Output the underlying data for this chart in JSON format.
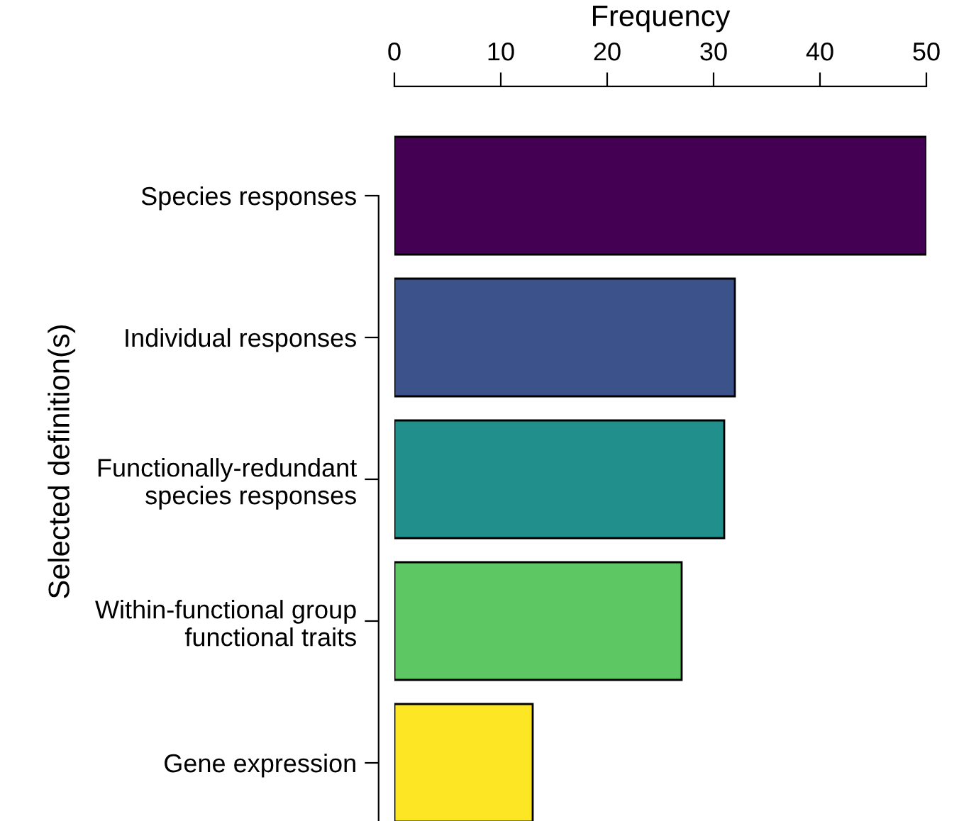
{
  "chart_data": {
    "type": "bar",
    "orientation": "horizontal",
    "xlabel": "Frequency",
    "ylabel": "Selected definition(s)",
    "categories": [
      "Species responses",
      "Individual responses",
      "Functionally-redundant\nspecies responses",
      "Within-functional group\nfunctional traits",
      "Gene expression"
    ],
    "values": [
      50,
      32,
      31,
      27,
      13
    ],
    "colors": [
      "#440154",
      "#3b528b",
      "#21908d",
      "#5dc863",
      "#fde725"
    ],
    "xlim": [
      0,
      50
    ],
    "xticks": [
      0,
      10,
      20,
      30,
      40,
      50
    ],
    "grid": false,
    "legend": false
  }
}
